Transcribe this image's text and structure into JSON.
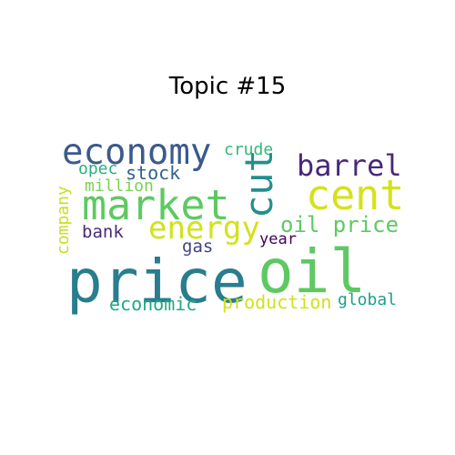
{
  "title": "Topic #15",
  "words": {
    "economy": {
      "text": "economy",
      "color": "#3b5a8c"
    },
    "crude": {
      "text": "crude",
      "color": "#35b779"
    },
    "opec": {
      "text": "opec",
      "color": "#2ab07f"
    },
    "stock": {
      "text": "stock",
      "color": "#34618d"
    },
    "cut": {
      "text": "cut",
      "color": "#21908d"
    },
    "barrel": {
      "text": "barrel",
      "color": "#482878"
    },
    "million": {
      "text": "million",
      "color": "#7ad151"
    },
    "market": {
      "text": "market",
      "color": "#5ec962"
    },
    "cent": {
      "text": "cent",
      "color": "#d5e21a"
    },
    "company": {
      "text": "company",
      "color": "#c8e020"
    },
    "energy": {
      "text": "energy",
      "color": "#d2e21b"
    },
    "oil_price": {
      "text": "oil price",
      "color": "#5ec962"
    },
    "bank": {
      "text": "bank",
      "color": "#472c7a"
    },
    "gas": {
      "text": "gas",
      "color": "#414487"
    },
    "year": {
      "text": "year",
      "color": "#440154"
    },
    "price": {
      "text": "price",
      "color": "#287d8e"
    },
    "oil": {
      "text": "oil",
      "color": "#5ec962"
    },
    "economic": {
      "text": "economic",
      "color": "#22a884"
    },
    "production": {
      "text": "production",
      "color": "#d0e11c"
    },
    "global": {
      "text": "global",
      "color": "#1fa088"
    }
  }
}
